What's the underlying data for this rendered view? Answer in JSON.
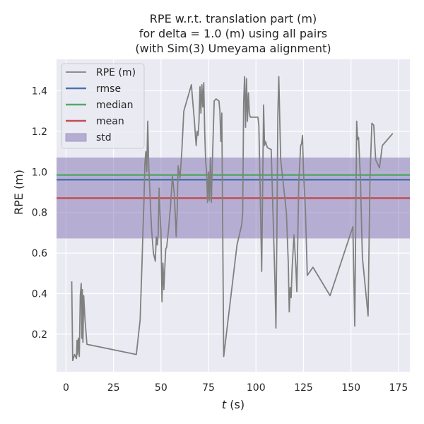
{
  "chart_data": {
    "type": "line",
    "title_lines": [
      "RPE w.r.t. translation part (m)",
      "for delta = 1.0 (m) using all pairs",
      "(with Sim(3) Umeyama alignment)"
    ],
    "xlabel_italic": "t",
    "xlabel_rest": " (s)",
    "ylabel": "RPE (m)",
    "xlim": [
      -5,
      181
    ],
    "ylim": [
      0.015,
      1.555
    ],
    "xticks": [
      0,
      25,
      50,
      75,
      100,
      125,
      150,
      175
    ],
    "yticks": [
      0.2,
      0.4,
      0.6,
      0.8,
      1.0,
      1.2,
      1.4
    ],
    "grid": true,
    "legend_position": "top-left",
    "colors": {
      "plot_bg": "#eaeaf2",
      "grid": "#ffffff",
      "rpe": "#808080",
      "rmse": "#4c72b0",
      "median": "#55a868",
      "mean": "#c44e52",
      "std_fill": "#8172b2"
    },
    "legend": [
      {
        "key": "rpe",
        "label": "RPE (m)"
      },
      {
        "key": "rmse",
        "label": "rmse"
      },
      {
        "key": "median",
        "label": "median"
      },
      {
        "key": "mean",
        "label": "mean"
      },
      {
        "key": "std",
        "label": "std"
      }
    ],
    "stats": {
      "rmse": 0.962,
      "median": 0.985,
      "mean": 0.871,
      "std_low": 0.672,
      "std_high": 1.071
    },
    "series": [
      {
        "key": "rpe",
        "name": "RPE (m)",
        "points": [
          [
            3.0,
            0.46
          ],
          [
            3.5,
            0.07
          ],
          [
            4.5,
            0.1
          ],
          [
            5.5,
            0.08
          ],
          [
            5.8,
            0.17
          ],
          [
            6.0,
            0.1
          ],
          [
            6.5,
            0.18
          ],
          [
            7.0,
            0.09
          ],
          [
            7.5,
            0.39
          ],
          [
            8.0,
            0.45
          ],
          [
            8.3,
            0.18
          ],
          [
            8.6,
            0.42
          ],
          [
            8.9,
            0.16
          ],
          [
            9.3,
            0.39
          ],
          [
            10.0,
            0.27
          ],
          [
            11.0,
            0.15
          ],
          [
            37.0,
            0.1
          ],
          [
            39.0,
            0.27
          ],
          [
            40.0,
            0.55
          ],
          [
            40.5,
            0.71
          ],
          [
            41.0,
            0.85
          ],
          [
            41.5,
            1.04
          ],
          [
            42.0,
            1.1
          ],
          [
            42.5,
            1.0
          ],
          [
            43.0,
            1.25
          ],
          [
            43.5,
            1.04
          ],
          [
            44.0,
            0.93
          ],
          [
            45.0,
            0.72
          ],
          [
            46.0,
            0.6
          ],
          [
            47.0,
            0.56
          ],
          [
            47.5,
            0.68
          ],
          [
            48.0,
            0.64
          ],
          [
            48.5,
            0.69
          ],
          [
            49.0,
            0.92
          ],
          [
            49.5,
            0.79
          ],
          [
            50.0,
            0.7
          ],
          [
            50.5,
            0.36
          ],
          [
            51.0,
            0.55
          ],
          [
            51.5,
            0.42
          ],
          [
            52.0,
            0.53
          ],
          [
            52.5,
            0.62
          ],
          [
            53.0,
            0.63
          ],
          [
            54.0,
            0.72
          ],
          [
            55.0,
            0.83
          ],
          [
            56.0,
            0.98
          ],
          [
            57.0,
            0.89
          ],
          [
            58.0,
            0.68
          ],
          [
            58.5,
            0.8
          ],
          [
            59.0,
            1.03
          ],
          [
            60.0,
            0.97
          ],
          [
            61.0,
            1.11
          ],
          [
            62.0,
            1.3
          ],
          [
            66.0,
            1.43
          ],
          [
            66.5,
            1.37
          ],
          [
            67.5,
            1.26
          ],
          [
            68.5,
            1.13
          ],
          [
            69.0,
            1.2
          ],
          [
            69.5,
            1.18
          ],
          [
            70.0,
            1.25
          ],
          [
            70.5,
            1.42
          ],
          [
            71.0,
            1.29
          ],
          [
            71.5,
            1.43
          ],
          [
            72.0,
            1.32
          ],
          [
            72.5,
            1.44
          ],
          [
            73.0,
            1.2
          ],
          [
            73.5,
            1.05
          ],
          [
            74.0,
            1.0
          ],
          [
            74.5,
            0.85
          ],
          [
            75.0,
            1.0
          ],
          [
            75.5,
            0.86
          ],
          [
            76.0,
            1.07
          ],
          [
            76.5,
            0.85
          ],
          [
            77.0,
            1.04
          ],
          [
            78.0,
            1.35
          ],
          [
            79.0,
            1.36
          ],
          [
            80.5,
            1.35
          ],
          [
            81.0,
            1.3
          ],
          [
            81.5,
            1.15
          ],
          [
            82.0,
            1.29
          ],
          [
            83.0,
            0.09
          ],
          [
            90.0,
            0.64
          ],
          [
            92.5,
            0.74
          ],
          [
            93.0,
            0.8
          ],
          [
            93.5,
            1.34
          ],
          [
            94.0,
            1.47
          ],
          [
            94.5,
            1.22
          ],
          [
            95.0,
            1.46
          ],
          [
            95.5,
            1.25
          ],
          [
            96.0,
            1.39
          ],
          [
            96.5,
            1.29
          ],
          [
            97.0,
            1.27
          ],
          [
            101.0,
            1.27
          ],
          [
            101.5,
            1.23
          ],
          [
            102.0,
            1.01
          ],
          [
            103.0,
            0.51
          ],
          [
            104.0,
            1.33
          ],
          [
            104.5,
            1.13
          ],
          [
            105.0,
            1.15
          ],
          [
            106.0,
            1.12
          ],
          [
            108.0,
            1.11
          ],
          [
            110.0,
            0.45
          ],
          [
            110.5,
            0.23
          ],
          [
            111.0,
            0.7
          ],
          [
            111.5,
            1.28
          ],
          [
            112.0,
            1.47
          ],
          [
            113.0,
            1.06
          ],
          [
            116.0,
            0.8
          ],
          [
            117.0,
            0.55
          ],
          [
            117.5,
            0.31
          ],
          [
            118.0,
            0.43
          ],
          [
            118.5,
            0.38
          ],
          [
            119.0,
            0.52
          ],
          [
            120.0,
            0.69
          ],
          [
            121.0,
            0.53
          ],
          [
            121.5,
            0.41
          ],
          [
            122.5,
            0.94
          ],
          [
            123.5,
            1.13
          ],
          [
            124.0,
            1.14
          ],
          [
            124.5,
            1.18
          ],
          [
            125.0,
            1.0
          ],
          [
            126.0,
            0.82
          ],
          [
            127.0,
            0.49
          ],
          [
            130.0,
            0.53
          ],
          [
            139.0,
            0.39
          ],
          [
            151.0,
            0.73
          ],
          [
            152.0,
            0.24
          ],
          [
            153.0,
            1.25
          ],
          [
            153.5,
            1.16
          ],
          [
            154.0,
            1.17
          ],
          [
            155.0,
            0.96
          ],
          [
            156.0,
            0.58
          ],
          [
            159.0,
            0.29
          ],
          [
            160.0,
            0.97
          ],
          [
            161.0,
            1.24
          ],
          [
            162.0,
            1.23
          ],
          [
            163.0,
            1.06
          ],
          [
            165.0,
            1.02
          ],
          [
            166.5,
            1.13
          ],
          [
            172.0,
            1.19
          ]
        ]
      }
    ]
  }
}
